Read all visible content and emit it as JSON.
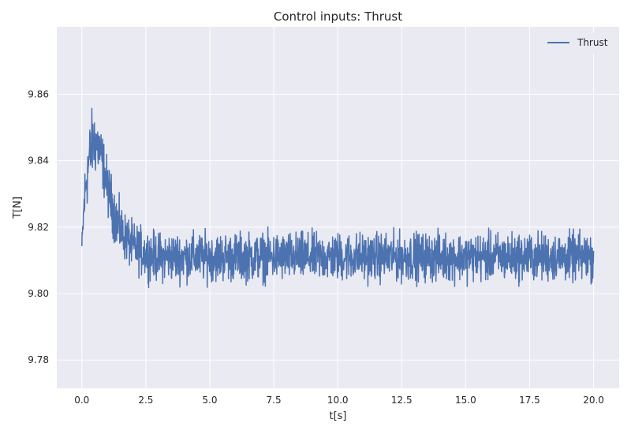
{
  "chart_data": {
    "type": "line",
    "title": "Control inputs: Thrust",
    "xlabel": "t[s]",
    "ylabel": "T[N]",
    "xlim": [
      -0.98,
      21.0
    ],
    "ylim": [
      9.7715,
      9.8803
    ],
    "xticks": [
      0.0,
      2.5,
      5.0,
      7.5,
      10.0,
      12.5,
      15.0,
      17.5,
      20.0
    ],
    "yticks": [
      9.78,
      9.8,
      9.82,
      9.84,
      9.86
    ],
    "xtick_labels": [
      "0.0",
      "2.5",
      "5.0",
      "7.5",
      "10.0",
      "12.5",
      "15.0",
      "17.5",
      "20.0"
    ],
    "ytick_labels": [
      "9.78",
      "9.80",
      "9.82",
      "9.84",
      "9.86"
    ],
    "grid": true,
    "legend_position": "top-right",
    "series": [
      {
        "name": "Thrust",
        "color": "#4c72b0",
        "x": [
          0.0,
          0.1,
          0.2,
          0.3,
          0.4,
          0.5,
          0.6,
          0.7,
          0.8,
          0.9,
          1.0,
          1.2,
          1.4,
          1.6,
          1.8,
          2.0,
          2.25,
          2.5,
          3.0,
          3.5,
          4.0,
          4.5,
          5.0,
          5.5,
          6.0,
          6.5,
          7.0,
          7.5,
          8.0,
          8.5,
          9.0,
          9.5,
          10.0,
          10.5,
          11.0,
          11.5,
          12.0,
          12.5,
          13.0,
          13.5,
          14.0,
          14.5,
          15.0,
          15.5,
          16.0,
          16.5,
          17.0,
          17.5,
          18.0,
          18.5,
          19.0,
          19.5,
          20.0
        ],
        "values": [
          9.814,
          9.828,
          9.836,
          9.841,
          9.845,
          9.846,
          9.845,
          9.843,
          9.84,
          9.836,
          9.832,
          9.826,
          9.821,
          9.818,
          9.816,
          9.814,
          9.813,
          9.812,
          9.811,
          9.811,
          9.811,
          9.811,
          9.811,
          9.811,
          9.811,
          9.811,
          9.811,
          9.811,
          9.811,
          9.811,
          9.811,
          9.811,
          9.811,
          9.811,
          9.811,
          9.811,
          9.811,
          9.811,
          9.811,
          9.811,
          9.811,
          9.811,
          9.811,
          9.811,
          9.811,
          9.811,
          9.811,
          9.811,
          9.811,
          9.811,
          9.811,
          9.811,
          9.811
        ],
        "noise_amplitude": [
          0.003,
          0.009,
          0.01,
          0.01,
          0.01,
          0.01,
          0.009,
          0.009,
          0.008,
          0.008,
          0.008,
          0.008,
          0.008,
          0.007,
          0.007,
          0.007,
          0.007,
          0.007,
          0.007,
          0.007,
          0.007,
          0.007,
          0.007,
          0.007,
          0.007,
          0.007,
          0.007,
          0.007,
          0.007,
          0.007,
          0.007,
          0.007,
          0.007,
          0.007,
          0.007,
          0.007,
          0.007,
          0.007,
          0.007,
          0.007,
          0.007,
          0.007,
          0.007,
          0.007,
          0.007,
          0.007,
          0.007,
          0.007,
          0.007,
          0.007,
          0.007,
          0.007,
          0.007
        ]
      }
    ]
  }
}
